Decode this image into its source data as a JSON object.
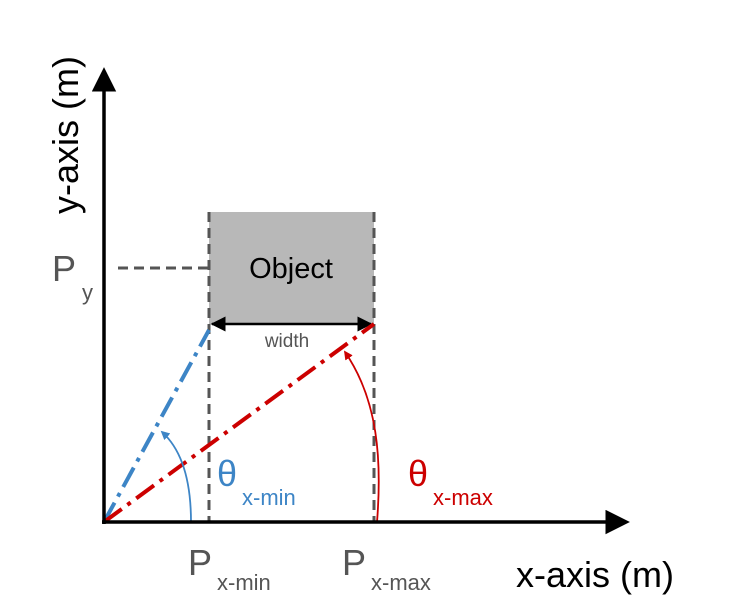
{
  "axes": {
    "x_label": "x-axis (m)",
    "y_label": "y-axis (m)"
  },
  "object": {
    "label": "Object",
    "width_label": "width"
  },
  "points": {
    "py_main": "P",
    "py_sub": "y",
    "px_min_main": "P",
    "px_min_sub": "x-min",
    "px_max_main": "P",
    "px_max_sub": "x-max"
  },
  "angles": {
    "theta_min_main": "θ",
    "theta_min_sub": "x-min",
    "theta_max_main": "θ",
    "theta_max_sub": "x-max"
  },
  "colors": {
    "axis": "#000000",
    "guide": "#555555",
    "object_fill": "#b8b8b8",
    "blue": "#3d85c6",
    "red": "#cc0000",
    "gray_text": "#555555"
  }
}
